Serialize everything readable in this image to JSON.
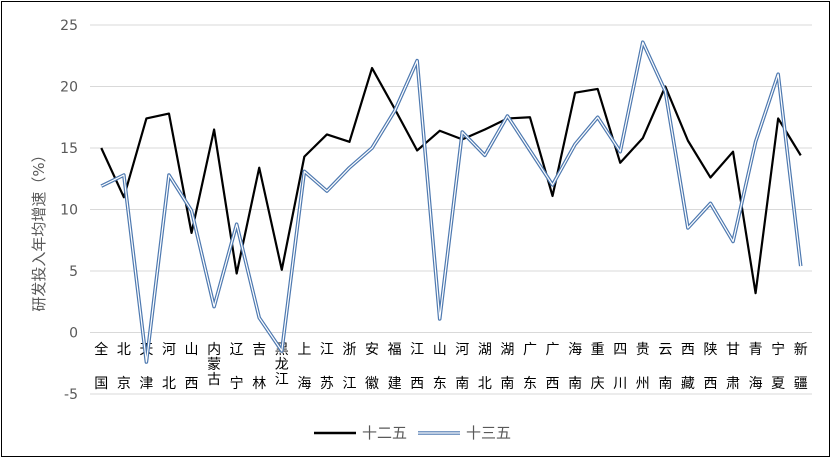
{
  "chart_data": {
    "type": "line",
    "ylabel": "研发投入年均增速（%）",
    "ylim": [
      -5,
      25
    ],
    "yticks": [
      -5,
      0,
      5,
      10,
      15,
      20,
      25
    ],
    "grid": true,
    "legend": "bottom",
    "categories": [
      "全国",
      "北京",
      "天津",
      "河北",
      "山西",
      "内蒙古",
      "辽宁",
      "吉林",
      "黑龙江",
      "上海",
      "江苏",
      "浙江",
      "安徽",
      "福建",
      "江西",
      "山东",
      "河南",
      "湖北",
      "湖南",
      "广东",
      "广西",
      "海南",
      "重庆",
      "四川",
      "贵州",
      "云南",
      "西藏",
      "陕西",
      "甘肃",
      "青海",
      "宁夏",
      "新疆"
    ],
    "series": [
      {
        "name": "十二五",
        "color": "#000000",
        "values": [
          15.0,
          11.0,
          17.4,
          17.8,
          8.1,
          16.5,
          4.8,
          13.4,
          5.1,
          14.3,
          16.1,
          15.5,
          21.5,
          18.2,
          14.8,
          16.4,
          15.7,
          16.5,
          17.4,
          17.5,
          11.1,
          19.5,
          19.8,
          13.8,
          15.8,
          20.0,
          15.6,
          12.6,
          14.7,
          3.2,
          17.4,
          14.4
        ]
      },
      {
        "name": "十三五",
        "color": "#4e79b0",
        "values": [
          11.9,
          12.8,
          -2.4,
          12.8,
          9.9,
          2.1,
          8.8,
          1.2,
          -1.5,
          13.1,
          11.5,
          13.4,
          15.0,
          18.0,
          22.1,
          1.1,
          16.3,
          14.4,
          17.6,
          14.8,
          12.0,
          15.3,
          17.5,
          14.7,
          23.6,
          19.6,
          8.5,
          10.5,
          7.4,
          15.5,
          21.0,
          5.4
        ]
      }
    ]
  }
}
